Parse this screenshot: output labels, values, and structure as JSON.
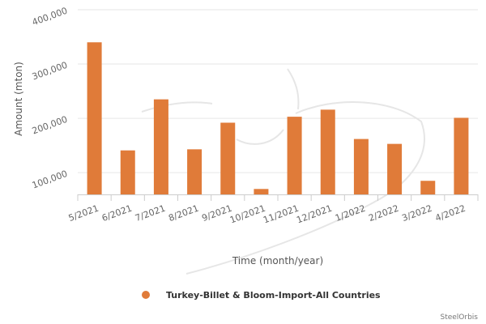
{
  "chart_data": {
    "type": "bar",
    "title": "",
    "xlabel": "Time (month/year)",
    "ylabel": "Amount (mton)",
    "categories": [
      "5/2021",
      "6/2021",
      "7/2021",
      "8/2021",
      "9/2021",
      "10/2021",
      "11/2021",
      "12/2021",
      "1/2022",
      "2/2022",
      "3/2022",
      "4/2022"
    ],
    "series": [
      {
        "name": "Turkey-Billet & Bloom-Import-All Countries",
        "values": [
          340000,
          141000,
          235000,
          143000,
          192000,
          70000,
          203000,
          216000,
          162000,
          153000,
          85000,
          201000
        ],
        "color": "#e07b39"
      }
    ],
    "ylim": [
      60000,
      400000
    ],
    "yticks": [
      100000,
      200000,
      300000,
      400000
    ],
    "ytick_labels": [
      "100,000",
      "200,000",
      "300,000",
      "400,000"
    ],
    "grid": true,
    "legend_position": "bottom-center"
  },
  "credit": "SteelOrbis"
}
